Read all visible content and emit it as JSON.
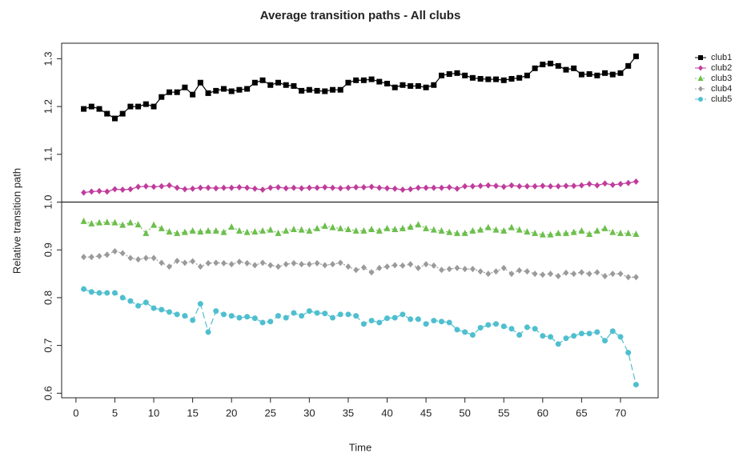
{
  "chart_data": {
    "type": "line",
    "title": "Average transition paths - All clubs",
    "x_label": "Time",
    "y_label": "Relative transition path",
    "x": [
      1,
      2,
      3,
      4,
      5,
      6,
      7,
      8,
      9,
      10,
      11,
      12,
      13,
      14,
      15,
      16,
      17,
      18,
      19,
      20,
      21,
      22,
      23,
      24,
      25,
      26,
      27,
      28,
      29,
      30,
      31,
      32,
      33,
      34,
      35,
      36,
      37,
      38,
      39,
      40,
      41,
      42,
      43,
      44,
      45,
      46,
      47,
      48,
      49,
      50,
      51,
      52,
      53,
      54,
      55,
      56,
      57,
      58,
      59,
      60,
      61,
      62,
      63,
      64,
      65,
      66,
      67,
      68,
      69,
      70,
      71,
      72
    ],
    "xlim": [
      -1.84,
      74.84
    ],
    "xticks": [
      0,
      5,
      10,
      15,
      20,
      25,
      30,
      35,
      40,
      45,
      50,
      55,
      60,
      65,
      70
    ],
    "ylim": [
      0.5905,
      1.3325
    ],
    "yticks": [
      0.6,
      0.7,
      0.8,
      0.9,
      {
        "value": 1,
        "label": "1.0"
      },
      1.1,
      1.2,
      1.3
    ],
    "hline": 1,
    "legend": "top-right",
    "series": [
      {
        "name": "club1",
        "color": "#000000",
        "marker": "square",
        "dash": "solid",
        "values": [
          1.195,
          1.2,
          1.195,
          1.185,
          1.175,
          1.185,
          1.2,
          1.2,
          1.205,
          1.2,
          1.22,
          1.23,
          1.23,
          1.24,
          1.225,
          1.25,
          1.228,
          1.233,
          1.237,
          1.232,
          1.235,
          1.237,
          1.25,
          1.255,
          1.245,
          1.25,
          1.245,
          1.243,
          1.233,
          1.235,
          1.233,
          1.232,
          1.235,
          1.235,
          1.25,
          1.255,
          1.255,
          1.257,
          1.252,
          1.248,
          1.24,
          1.245,
          1.243,
          1.243,
          1.24,
          1.245,
          1.265,
          1.268,
          1.27,
          1.265,
          1.26,
          1.258,
          1.257,
          1.257,
          1.255,
          1.258,
          1.26,
          1.265,
          1.28,
          1.288,
          1.29,
          1.285,
          1.277,
          1.28,
          1.267,
          1.268,
          1.265,
          1.27,
          1.267,
          1.27,
          1.285,
          1.305
        ]
      },
      {
        "name": "club2",
        "color": "#c03c9c",
        "marker": "diamond",
        "dash": "solid",
        "values": [
          1.02,
          1.022,
          1.023,
          1.022,
          1.027,
          1.026,
          1.027,
          1.032,
          1.033,
          1.032,
          1.033,
          1.035,
          1.03,
          1.027,
          1.028,
          1.03,
          1.03,
          1.029,
          1.03,
          1.03,
          1.031,
          1.03,
          1.028,
          1.026,
          1.03,
          1.031,
          1.029,
          1.03,
          1.029,
          1.03,
          1.03,
          1.031,
          1.03,
          1.029,
          1.03,
          1.031,
          1.031,
          1.032,
          1.03,
          1.029,
          1.028,
          1.026,
          1.027,
          1.03,
          1.03,
          1.03,
          1.03,
          1.031,
          1.028,
          1.033,
          1.033,
          1.034,
          1.035,
          1.034,
          1.032,
          1.035,
          1.033,
          1.033,
          1.033,
          1.034,
          1.033,
          1.033,
          1.034,
          1.034,
          1.035,
          1.038,
          1.035,
          1.039,
          1.036,
          1.038,
          1.04,
          1.043
        ]
      },
      {
        "name": "club3",
        "color": "#6cbf4c",
        "marker": "triangle",
        "dash": "dotted",
        "values": [
          0.96,
          0.955,
          0.957,
          0.958,
          0.957,
          0.952,
          0.957,
          0.953,
          0.935,
          0.952,
          0.945,
          0.938,
          0.935,
          0.937,
          0.94,
          0.938,
          0.94,
          0.94,
          0.937,
          0.948,
          0.94,
          0.937,
          0.938,
          0.94,
          0.942,
          0.935,
          0.94,
          0.943,
          0.942,
          0.94,
          0.945,
          0.95,
          0.947,
          0.945,
          0.943,
          0.94,
          0.94,
          0.943,
          0.94,
          0.945,
          0.943,
          0.945,
          0.948,
          0.953,
          0.945,
          0.942,
          0.94,
          0.937,
          0.935,
          0.935,
          0.94,
          0.942,
          0.947,
          0.942,
          0.94,
          0.947,
          0.942,
          0.938,
          0.935,
          0.932,
          0.932,
          0.935,
          0.935,
          0.937,
          0.94,
          0.933,
          0.94,
          0.945,
          0.937,
          0.935,
          0.935,
          0.933
        ]
      },
      {
        "name": "club4",
        "color": "#9a9a9a",
        "marker": "diamond",
        "dash": "dotted",
        "values": [
          0.885,
          0.885,
          0.887,
          0.89,
          0.897,
          0.893,
          0.883,
          0.88,
          0.883,
          0.883,
          0.873,
          0.865,
          0.877,
          0.873,
          0.876,
          0.865,
          0.872,
          0.873,
          0.872,
          0.87,
          0.875,
          0.872,
          0.868,
          0.873,
          0.868,
          0.865,
          0.87,
          0.872,
          0.87,
          0.87,
          0.872,
          0.868,
          0.87,
          0.873,
          0.865,
          0.858,
          0.863,
          0.853,
          0.862,
          0.865,
          0.868,
          0.867,
          0.87,
          0.862,
          0.87,
          0.867,
          0.858,
          0.86,
          0.862,
          0.86,
          0.86,
          0.855,
          0.85,
          0.855,
          0.862,
          0.85,
          0.857,
          0.855,
          0.85,
          0.848,
          0.85,
          0.845,
          0.852,
          0.85,
          0.853,
          0.85,
          0.853,
          0.845,
          0.85,
          0.85,
          0.843,
          0.843
        ]
      },
      {
        "name": "club5",
        "color": "#4fbfcf",
        "marker": "circle",
        "dash": "dashed",
        "values": [
          0.818,
          0.812,
          0.81,
          0.81,
          0.81,
          0.8,
          0.793,
          0.783,
          0.79,
          0.778,
          0.775,
          0.77,
          0.765,
          0.762,
          0.753,
          0.787,
          0.728,
          0.772,
          0.765,
          0.762,
          0.758,
          0.76,
          0.757,
          0.748,
          0.75,
          0.762,
          0.758,
          0.768,
          0.762,
          0.772,
          0.768,
          0.767,
          0.758,
          0.765,
          0.765,
          0.762,
          0.745,
          0.752,
          0.748,
          0.757,
          0.758,
          0.765,
          0.755,
          0.755,
          0.745,
          0.752,
          0.75,
          0.748,
          0.733,
          0.728,
          0.722,
          0.737,
          0.743,
          0.745,
          0.74,
          0.735,
          0.722,
          0.738,
          0.735,
          0.72,
          0.718,
          0.703,
          0.715,
          0.72,
          0.725,
          0.725,
          0.728,
          0.71,
          0.73,
          0.718,
          0.685,
          0.618
        ]
      }
    ]
  }
}
